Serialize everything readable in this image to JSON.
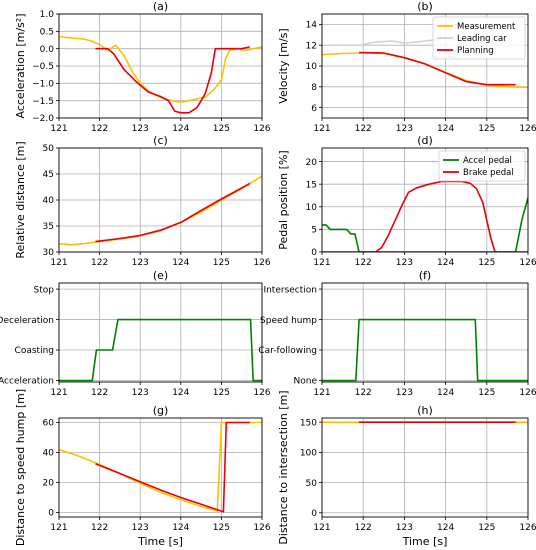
{
  "colors": {
    "measurement": "#ffc000",
    "leading_car": "#d3d3d3",
    "planning": "#e8000b",
    "accel": "#008000",
    "brake": "#e8000b",
    "grid": "#b0b0b0"
  },
  "chart_data": [
    {
      "id": "a",
      "type": "line",
      "title": "(a)",
      "xlabel": "",
      "ylabel": "Acceleration [m/s²]",
      "xlim": [
        121,
        126
      ],
      "ylim": [
        -2.0,
        1.0
      ],
      "xticks": [
        121,
        122,
        123,
        124,
        125,
        126
      ],
      "xticklabels": [
        "121",
        "122",
        "123",
        "124",
        "125",
        "126"
      ],
      "yticks": [
        -2.0,
        -1.5,
        -1.0,
        -0.5,
        0.0,
        0.5,
        1.0
      ],
      "yticklabels": [
        "−2.0",
        "−1.5",
        "−1.0",
        "−0.5",
        "0.0",
        "0.5",
        "1.0"
      ],
      "grid": true,
      "series": [
        {
          "color": "measurement",
          "x": [
            121,
            121.2,
            121.4,
            121.6,
            121.8,
            122.0,
            122.2,
            122.4,
            122.6,
            122.8,
            123.0,
            123.2,
            123.4,
            123.6,
            123.8,
            124.0,
            124.2,
            124.4,
            124.6,
            124.8,
            125.0,
            125.1,
            125.2,
            125.4,
            125.6,
            125.8,
            126.0
          ],
          "y": [
            0.35,
            0.32,
            0.3,
            0.28,
            0.22,
            0.12,
            -0.05,
            0.1,
            -0.2,
            -0.65,
            -1.0,
            -1.22,
            -1.35,
            -1.45,
            -1.5,
            -1.55,
            -1.5,
            -1.45,
            -1.4,
            -1.2,
            -0.9,
            -0.3,
            -0.05,
            0.0,
            -0.05,
            0.0,
            0.05
          ]
        },
        {
          "color": "planning",
          "x": [
            121.9,
            122.2,
            122.35,
            122.6,
            122.9,
            123.2,
            123.5,
            123.7,
            123.85,
            124.0,
            124.2,
            124.4,
            124.6,
            124.75,
            124.85,
            125.0,
            125.5,
            125.7
          ],
          "y": [
            0.0,
            0.0,
            -0.15,
            -0.6,
            -0.95,
            -1.25,
            -1.38,
            -1.5,
            -1.8,
            -1.85,
            -1.85,
            -1.7,
            -1.3,
            -0.7,
            0.0,
            0.0,
            0.0,
            0.05
          ]
        }
      ]
    },
    {
      "id": "b",
      "type": "line",
      "title": "(b)",
      "xlabel": "",
      "ylabel": "Velocity [m/s]",
      "xlim": [
        121,
        126
      ],
      "ylim": [
        5,
        15
      ],
      "xticks": [
        121,
        122,
        123,
        124,
        125,
        126
      ],
      "xticklabels": [
        "121",
        "122",
        "123",
        "124",
        "125",
        "126"
      ],
      "yticks": [
        6,
        8,
        10,
        12,
        14
      ],
      "yticklabels": [
        "6",
        "8",
        "10",
        "12",
        "14"
      ],
      "grid": true,
      "legend_position": "top-right",
      "series": [
        {
          "name": "Measurement",
          "color": "measurement",
          "x": [
            121.0,
            121.5,
            122.0,
            122.5,
            123.0,
            123.5,
            124.0,
            124.5,
            125.0,
            125.5,
            126.0
          ],
          "y": [
            11.1,
            11.2,
            11.25,
            11.2,
            10.8,
            10.2,
            9.4,
            8.6,
            8.15,
            8.0,
            7.95
          ]
        },
        {
          "name": "Leading car",
          "color": "leading_car",
          "x": [
            121.9,
            122.3,
            122.7,
            123.0,
            123.3,
            123.6,
            123.9,
            124.2,
            124.5,
            124.8,
            125.1
          ],
          "y": [
            12.0,
            12.3,
            12.4,
            12.2,
            12.3,
            12.45,
            12.6,
            12.5,
            12.6,
            12.7,
            12.8
          ]
        },
        {
          "name": "Planning",
          "color": "planning",
          "x": [
            121.9,
            122.5,
            123.0,
            123.5,
            124.0,
            124.5,
            125.0,
            125.5,
            125.7
          ],
          "y": [
            11.3,
            11.25,
            10.8,
            10.2,
            9.35,
            8.5,
            8.2,
            8.2,
            8.2
          ]
        }
      ]
    },
    {
      "id": "c",
      "type": "line",
      "title": "(c)",
      "xlabel": "",
      "ylabel": "Relative distance [m]",
      "xlim": [
        121,
        126
      ],
      "ylim": [
        30,
        50
      ],
      "xticks": [
        121,
        122,
        123,
        124,
        125,
        126
      ],
      "xticklabels": [
        "121",
        "122",
        "123",
        "124",
        "125",
        "126"
      ],
      "yticks": [
        30,
        35,
        40,
        45,
        50
      ],
      "yticklabels": [
        "30",
        "35",
        "40",
        "45",
        "50"
      ],
      "grid": true,
      "series": [
        {
          "color": "measurement",
          "x": [
            121.0,
            121.3,
            121.6,
            122.0,
            122.5,
            123.0,
            123.5,
            124.0,
            124.5,
            125.0,
            125.5,
            126.0
          ],
          "y": [
            31.6,
            31.4,
            31.6,
            32.0,
            32.5,
            33.1,
            34.1,
            35.7,
            37.7,
            40.0,
            42.2,
            44.6
          ]
        },
        {
          "color": "planning",
          "x": [
            121.9,
            122.5,
            123.0,
            123.5,
            124.0,
            124.5,
            125.0,
            125.5,
            125.7
          ],
          "y": [
            32.0,
            32.6,
            33.2,
            34.2,
            35.7,
            38.0,
            40.2,
            42.3,
            43.2
          ]
        }
      ]
    },
    {
      "id": "d",
      "type": "line",
      "title": "(d)",
      "xlabel": "",
      "ylabel": "Pedal position [%]",
      "xlim": [
        121,
        126
      ],
      "ylim": [
        0,
        23
      ],
      "xticks": [
        121,
        122,
        123,
        124,
        125,
        126
      ],
      "xticklabels": [
        "121",
        "122",
        "123",
        "124",
        "125",
        "126"
      ],
      "yticks": [
        0,
        5,
        10,
        15,
        20
      ],
      "yticklabels": [
        "0",
        "5",
        "10",
        "15",
        "20"
      ],
      "grid": true,
      "legend_position": "top-right",
      "series": [
        {
          "name": "Accel pedal",
          "color": "accel",
          "x": [
            121.0,
            121.1,
            121.2,
            121.6,
            121.7,
            121.8,
            121.85,
            121.9,
            122.0,
            125.7,
            125.85,
            126.0
          ],
          "y": [
            6.0,
            6.0,
            5.0,
            5.0,
            4.0,
            4.0,
            2.0,
            0.0,
            0.0,
            0.0,
            7.0,
            12.0
          ]
        },
        {
          "name": "Brake pedal",
          "color": "brake",
          "x": [
            121.0,
            122.3,
            122.45,
            122.6,
            122.8,
            122.95,
            123.1,
            123.3,
            123.6,
            123.9,
            124.4,
            124.6,
            124.75,
            124.9,
            125.0,
            125.1,
            125.2,
            126.0
          ],
          "y": [
            0.0,
            0.0,
            1.0,
            3.5,
            7.5,
            10.5,
            13.2,
            14.2,
            15.0,
            15.6,
            15.6,
            15.2,
            14.0,
            11.0,
            7.0,
            3.0,
            0.0,
            0.0
          ]
        }
      ]
    },
    {
      "id": "e",
      "type": "line",
      "title": "(e)",
      "xlabel": "",
      "ylabel": "",
      "xlim": [
        121,
        126
      ],
      "ylim": [
        -0.05,
        3.2
      ],
      "xticks": [
        121,
        122,
        123,
        124,
        125,
        126
      ],
      "xticklabels": [
        "121",
        "122",
        "123",
        "124",
        "125",
        "126"
      ],
      "yticks": [
        0,
        1,
        2,
        3
      ],
      "yticklabels": [
        "Acceleration",
        "Coasting",
        "Deceleration",
        "Stop"
      ],
      "grid": true,
      "series": [
        {
          "color": "accel",
          "x": [
            121.0,
            121.82,
            121.92,
            122.32,
            122.45,
            125.72,
            125.78,
            126.0
          ],
          "y": [
            0,
            0,
            1,
            1,
            2,
            2,
            0,
            0
          ]
        }
      ]
    },
    {
      "id": "f",
      "type": "line",
      "title": "(f)",
      "xlabel": "",
      "ylabel": "",
      "xlim": [
        121,
        126
      ],
      "ylim": [
        -0.05,
        3.2
      ],
      "xticks": [
        121,
        122,
        123,
        124,
        125,
        126
      ],
      "xticklabels": [
        "121",
        "122",
        "123",
        "124",
        "125",
        "126"
      ],
      "yticks": [
        0,
        1,
        2,
        3
      ],
      "yticklabels": [
        "None",
        "Car-following",
        "Speed hump",
        "Intersection"
      ],
      "grid": true,
      "series": [
        {
          "color": "accel",
          "x": [
            121.0,
            121.82,
            121.9,
            124.72,
            124.78,
            126.0
          ],
          "y": [
            0,
            0,
            2,
            2,
            0,
            0
          ]
        }
      ]
    },
    {
      "id": "g",
      "type": "line",
      "title": "(g)",
      "xlabel": "Time [s]",
      "ylabel": "Distance to speed hump [m]",
      "xlim": [
        121,
        126
      ],
      "ylim": [
        -3,
        63
      ],
      "xticks": [
        121,
        122,
        123,
        124,
        125,
        126
      ],
      "xticklabels": [
        "121",
        "122",
        "123",
        "124",
        "125",
        "126"
      ],
      "yticks": [
        0,
        20,
        40,
        60
      ],
      "yticklabels": [
        "0",
        "20",
        "40",
        "60"
      ],
      "grid": true,
      "series": [
        {
          "color": "measurement",
          "x": [
            121.0,
            121.5,
            122.0,
            122.5,
            123.0,
            123.5,
            124.0,
            124.5,
            124.9,
            125.0,
            125.05,
            126.0
          ],
          "y": [
            42.0,
            37.5,
            32.0,
            26.0,
            19.5,
            13.5,
            8.5,
            4.0,
            1.0,
            60.0,
            60.0,
            60.0
          ]
        },
        {
          "color": "planning",
          "x": [
            121.9,
            122.5,
            123.0,
            123.5,
            124.0,
            124.5,
            125.05,
            125.12,
            125.7
          ],
          "y": [
            32.5,
            26.0,
            20.5,
            15.0,
            10.0,
            5.5,
            0.5,
            60.0,
            60.0
          ]
        }
      ]
    },
    {
      "id": "h",
      "type": "line",
      "title": "(h)",
      "xlabel": "Time [s]",
      "ylabel": "Distance to intersection [m]",
      "xlim": [
        121,
        126
      ],
      "ylim": [
        -7,
        157
      ],
      "xticks": [
        121,
        122,
        123,
        124,
        125,
        126
      ],
      "xticklabels": [
        "121",
        "122",
        "123",
        "124",
        "125",
        "126"
      ],
      "yticks": [
        0,
        50,
        100,
        150
      ],
      "yticklabels": [
        "0",
        "50",
        "100",
        "150"
      ],
      "grid": true,
      "series": [
        {
          "color": "measurement",
          "x": [
            121.0,
            126.0
          ],
          "y": [
            150,
            150
          ]
        },
        {
          "color": "planning",
          "x": [
            121.9,
            125.7
          ],
          "y": [
            150,
            150
          ]
        }
      ]
    }
  ]
}
